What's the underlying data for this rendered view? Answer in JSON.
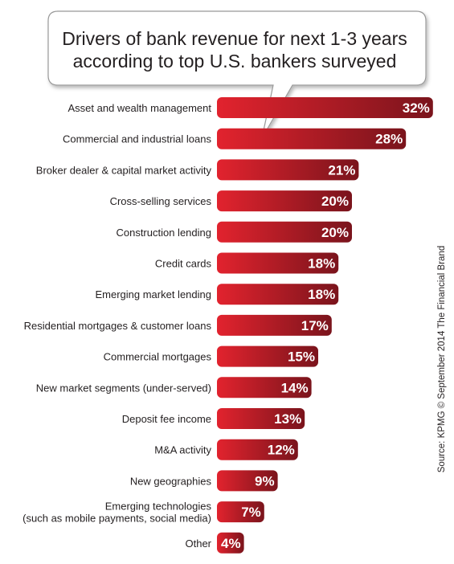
{
  "chart_data": {
    "type": "bar",
    "orientation": "horizontal",
    "title_lines": [
      "Drivers of bank revenue for next 1-3 years",
      "according to top U.S. bankers surveyed"
    ],
    "categories": [
      [
        "Asset and wealth management"
      ],
      [
        "Commercial and industrial loans"
      ],
      [
        "Broker dealer & capital market activity"
      ],
      [
        "Cross-selling services"
      ],
      [
        "Construction lending"
      ],
      [
        "Credit cards"
      ],
      [
        "Emerging market lending"
      ],
      [
        "Residential mortgages & customer loans"
      ],
      [
        "Commercial mortgages"
      ],
      [
        "New market segments (under-served)"
      ],
      [
        "Deposit fee income"
      ],
      [
        "M&A activity"
      ],
      [
        "New geographies"
      ],
      [
        "Emerging technologies",
        "(such as mobile payments, social media)"
      ],
      [
        "Other"
      ]
    ],
    "values": [
      32,
      28,
      21,
      20,
      20,
      18,
      18,
      17,
      15,
      14,
      13,
      12,
      9,
      7,
      4
    ],
    "value_labels": [
      "32%",
      "28%",
      "21%",
      "20%",
      "20%",
      "18%",
      "18%",
      "17%",
      "15%",
      "14%",
      "13%",
      "12%",
      "9%",
      "7%",
      "4%"
    ],
    "source": "Source: KPMG © September 2014 The Financial Brand",
    "colors": {
      "bar_light": "#e2232e",
      "bar_dark": "#7a141c",
      "text": "#231f20",
      "callout_border": "#999999"
    }
  }
}
